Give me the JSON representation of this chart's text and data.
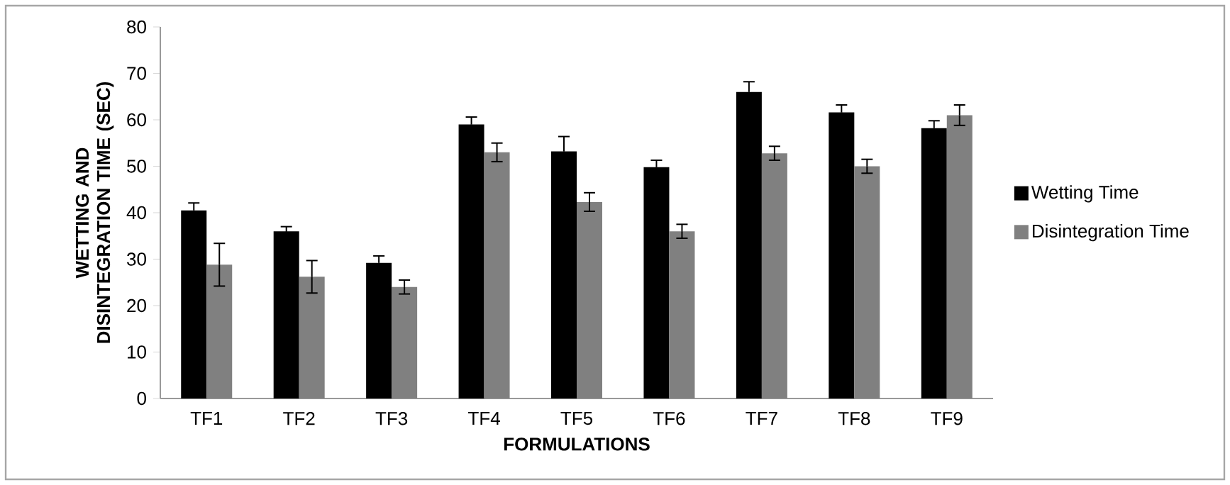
{
  "chart_data": {
    "type": "bar",
    "xlabel": "FORMULATIONS",
    "ylabel": "WETTING AND DISINTEGRATION TIME (SEC)",
    "categories": [
      "TF1",
      "TF2",
      "TF3",
      "TF4",
      "TF5",
      "TF6",
      "TF7",
      "TF8",
      "TF9"
    ],
    "series": [
      {
        "name": "Wetting Time",
        "color": "#000000",
        "values": [
          40.5,
          36,
          29.2,
          59,
          53.2,
          49.8,
          66,
          61.6,
          58.2
        ],
        "errors": [
          1.6,
          1,
          1.5,
          1.6,
          3.2,
          1.5,
          2.2,
          1.6,
          1.6
        ]
      },
      {
        "name": "Disintegration Time",
        "color": "#808080",
        "values": [
          28.8,
          26.2,
          24,
          53,
          42.3,
          36,
          52.8,
          50,
          61
        ],
        "errors": [
          4.6,
          3.5,
          1.5,
          2,
          2,
          1.5,
          1.5,
          1.5,
          2.2
        ]
      }
    ],
    "ylim": [
      0,
      80
    ],
    "yticks": [
      0,
      10,
      20,
      30,
      40,
      50,
      60,
      70,
      80
    ],
    "legend": "right"
  }
}
